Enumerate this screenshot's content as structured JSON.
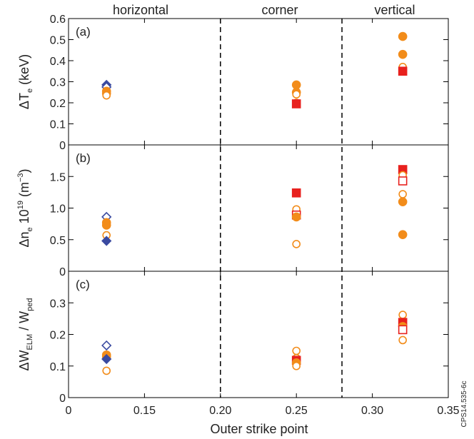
{
  "chart_data": {
    "type": "scatter",
    "xlabel": "Outer strike point",
    "x_ticks": [
      "0",
      "0.15",
      "0.20",
      "0.25",
      "0.30",
      "0.35"
    ],
    "xlim": [
      0.1,
      0.35
    ],
    "region_dividers": [
      0.2,
      0.28
    ],
    "regions": [
      "horizontal",
      "corner",
      "vertical"
    ],
    "figure_id": "CPS14.535-6c",
    "colors": {
      "orange": "#f28c1a",
      "red": "#e8211e",
      "blue": "#3a4aa0",
      "divider": "#000000"
    },
    "panels": [
      {
        "label": "(a)",
        "ylabel_main": "ΔT",
        "ylabel_sub": "e",
        "ylabel_tail": " (keV)",
        "ylim": [
          0,
          0.6
        ],
        "y_ticks": [
          {
            "v": 0,
            "t": "0"
          },
          {
            "v": 0.1,
            "t": "0.1"
          },
          {
            "v": 0.2,
            "t": "0.2"
          },
          {
            "v": 0.3,
            "t": "0.3"
          },
          {
            "v": 0.4,
            "t": "0.4"
          },
          {
            "v": 0.5,
            "t": "0.5"
          },
          {
            "v": 0.6,
            "t": "0.6"
          }
        ],
        "points": [
          {
            "x": 0.125,
            "y": 0.285,
            "marker": "diamond",
            "fill": true,
            "color": "blue"
          },
          {
            "x": 0.125,
            "y": 0.275,
            "marker": "diamond",
            "fill": false,
            "color": "blue"
          },
          {
            "x": 0.125,
            "y": 0.255,
            "marker": "circle",
            "fill": true,
            "color": "orange"
          },
          {
            "x": 0.125,
            "y": 0.245,
            "marker": "circle",
            "fill": true,
            "color": "orange"
          },
          {
            "x": 0.125,
            "y": 0.235,
            "marker": "circle",
            "fill": false,
            "color": "orange"
          },
          {
            "x": 0.25,
            "y": 0.285,
            "marker": "circle",
            "fill": true,
            "color": "orange"
          },
          {
            "x": 0.25,
            "y": 0.25,
            "marker": "circle",
            "fill": true,
            "color": "orange"
          },
          {
            "x": 0.25,
            "y": 0.24,
            "marker": "circle",
            "fill": false,
            "color": "orange"
          },
          {
            "x": 0.25,
            "y": 0.2,
            "marker": "circle",
            "fill": false,
            "color": "orange"
          },
          {
            "x": 0.25,
            "y": 0.195,
            "marker": "square",
            "fill": true,
            "color": "red"
          },
          {
            "x": 0.32,
            "y": 0.515,
            "marker": "circle",
            "fill": true,
            "color": "orange"
          },
          {
            "x": 0.32,
            "y": 0.43,
            "marker": "circle",
            "fill": true,
            "color": "orange"
          },
          {
            "x": 0.32,
            "y": 0.37,
            "marker": "circle",
            "fill": false,
            "color": "orange"
          },
          {
            "x": 0.32,
            "y": 0.35,
            "marker": "square",
            "fill": true,
            "color": "red"
          }
        ]
      },
      {
        "label": "(b)",
        "ylabel_main": "Δn",
        "ylabel_sub": "e",
        "ylabel_mid": " 10",
        "ylabel_sup1": "19",
        "ylabel_mid2": " (m",
        "ylabel_sup2": "−3",
        "ylabel_tail": ")",
        "ylim": [
          0,
          2.0
        ],
        "y_ticks": [
          {
            "v": 0,
            "t": "0"
          },
          {
            "v": 0.5,
            "t": "0.5"
          },
          {
            "v": 1.0,
            "t": "1.0"
          },
          {
            "v": 1.5,
            "t": "1.5"
          }
        ],
        "points": [
          {
            "x": 0.125,
            "y": 0.86,
            "marker": "diamond",
            "fill": false,
            "color": "blue"
          },
          {
            "x": 0.125,
            "y": 0.77,
            "marker": "circle",
            "fill": true,
            "color": "orange"
          },
          {
            "x": 0.125,
            "y": 0.73,
            "marker": "circle",
            "fill": true,
            "color": "orange"
          },
          {
            "x": 0.125,
            "y": 0.57,
            "marker": "circle",
            "fill": false,
            "color": "orange"
          },
          {
            "x": 0.125,
            "y": 0.48,
            "marker": "diamond",
            "fill": true,
            "color": "blue"
          },
          {
            "x": 0.25,
            "y": 1.24,
            "marker": "square",
            "fill": true,
            "color": "red"
          },
          {
            "x": 0.25,
            "y": 0.98,
            "marker": "circle",
            "fill": false,
            "color": "orange"
          },
          {
            "x": 0.25,
            "y": 0.89,
            "marker": "square",
            "fill": false,
            "color": "red"
          },
          {
            "x": 0.25,
            "y": 0.86,
            "marker": "circle",
            "fill": true,
            "color": "orange"
          },
          {
            "x": 0.25,
            "y": 0.43,
            "marker": "circle",
            "fill": false,
            "color": "orange"
          },
          {
            "x": 0.32,
            "y": 1.61,
            "marker": "square",
            "fill": true,
            "color": "red"
          },
          {
            "x": 0.32,
            "y": 1.52,
            "marker": "circle",
            "fill": false,
            "color": "orange"
          },
          {
            "x": 0.32,
            "y": 1.43,
            "marker": "square",
            "fill": false,
            "color": "red"
          },
          {
            "x": 0.32,
            "y": 1.22,
            "marker": "circle",
            "fill": false,
            "color": "orange"
          },
          {
            "x": 0.32,
            "y": 1.1,
            "marker": "circle",
            "fill": true,
            "color": "orange"
          },
          {
            "x": 0.32,
            "y": 0.58,
            "marker": "circle",
            "fill": true,
            "color": "orange"
          }
        ]
      },
      {
        "label": "(c)",
        "ylabel_main": "ΔW",
        "ylabel_sub": "ELM",
        "ylabel_mid": " / W",
        "ylabel_sub2": "ped",
        "ylim": [
          0,
          0.4
        ],
        "y_ticks": [
          {
            "v": 0,
            "t": "0"
          },
          {
            "v": 0.1,
            "t": "0.1"
          },
          {
            "v": 0.2,
            "t": "0.2"
          },
          {
            "v": 0.3,
            "t": "0.3"
          }
        ],
        "points": [
          {
            "x": 0.125,
            "y": 0.165,
            "marker": "diamond",
            "fill": false,
            "color": "blue"
          },
          {
            "x": 0.125,
            "y": 0.135,
            "marker": "circle",
            "fill": true,
            "color": "orange"
          },
          {
            "x": 0.125,
            "y": 0.13,
            "marker": "circle",
            "fill": true,
            "color": "orange"
          },
          {
            "x": 0.125,
            "y": 0.122,
            "marker": "diamond",
            "fill": true,
            "color": "blue"
          },
          {
            "x": 0.125,
            "y": 0.085,
            "marker": "circle",
            "fill": false,
            "color": "orange"
          },
          {
            "x": 0.25,
            "y": 0.148,
            "marker": "circle",
            "fill": false,
            "color": "orange"
          },
          {
            "x": 0.25,
            "y": 0.125,
            "marker": "circle",
            "fill": false,
            "color": "orange"
          },
          {
            "x": 0.25,
            "y": 0.118,
            "marker": "square",
            "fill": true,
            "color": "red"
          },
          {
            "x": 0.25,
            "y": 0.11,
            "marker": "circle",
            "fill": true,
            "color": "orange"
          },
          {
            "x": 0.25,
            "y": 0.1,
            "marker": "circle",
            "fill": false,
            "color": "orange"
          },
          {
            "x": 0.32,
            "y": 0.262,
            "marker": "circle",
            "fill": false,
            "color": "orange"
          },
          {
            "x": 0.32,
            "y": 0.238,
            "marker": "square",
            "fill": true,
            "color": "red"
          },
          {
            "x": 0.32,
            "y": 0.225,
            "marker": "circle",
            "fill": true,
            "color": "orange"
          },
          {
            "x": 0.32,
            "y": 0.215,
            "marker": "square",
            "fill": false,
            "color": "red"
          },
          {
            "x": 0.32,
            "y": 0.182,
            "marker": "circle",
            "fill": false,
            "color": "orange"
          }
        ]
      }
    ]
  }
}
